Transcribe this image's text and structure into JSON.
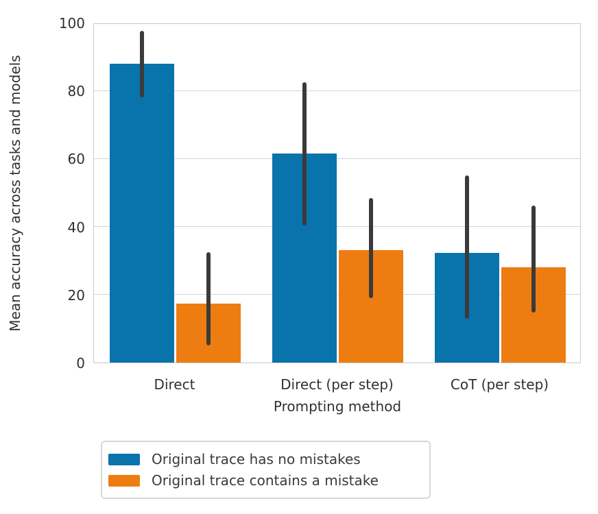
{
  "chart_data": {
    "type": "bar",
    "title": "",
    "xlabel": "Prompting method",
    "ylabel": "Mean accuracy across tasks and models",
    "categories": [
      "Direct",
      "Direct (per step)",
      "CoT (per step)"
    ],
    "series": [
      {
        "name": "Original trace has no mistakes",
        "color": "#0973ab",
        "values": [
          88,
          61.5,
          32.3
        ],
        "err_low": [
          78,
          40.3,
          13
        ],
        "err_high": [
          97.5,
          82.5,
          55
        ]
      },
      {
        "name": "Original trace contains a mistake",
        "color": "#ee7d11",
        "values": [
          17.3,
          33,
          28
        ],
        "err_low": [
          5,
          19,
          14.7
        ],
        "err_high": [
          32.5,
          48.3,
          46.2
        ]
      }
    ],
    "ylim": [
      0,
      100
    ],
    "yticks": [
      0,
      20,
      40,
      60,
      80,
      100
    ],
    "grid": true,
    "legend_position": "bottom-left",
    "error_bar_color": "#3a3a3a",
    "grid_color": "#d4d4d4",
    "axis_edge_color": "#c9c9c9",
    "text_color": "#303030"
  }
}
